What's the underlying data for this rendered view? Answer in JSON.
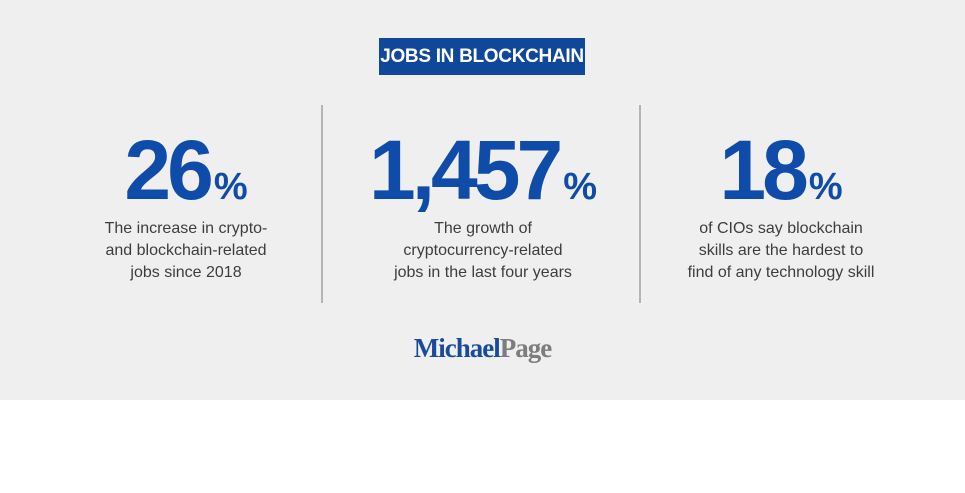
{
  "header": {
    "title": "JOBS IN BLOCKCHAIN"
  },
  "stats": [
    {
      "number": "26",
      "unit": "%",
      "description": [
        "The increase in crypto-",
        "and blockchain-related",
        "jobs since 2018"
      ]
    },
    {
      "number": "1,457",
      "unit": "%",
      "description": [
        "The growth of",
        "cryptocurrency-related",
        "jobs in the last four years"
      ]
    },
    {
      "number": "18",
      "unit": "%",
      "description": [
        "of CIOs say blockchain",
        "skills are the hardest to",
        "find of any technology skill"
      ]
    }
  ],
  "logo": {
    "first": "Michael",
    "second": "Page"
  }
}
